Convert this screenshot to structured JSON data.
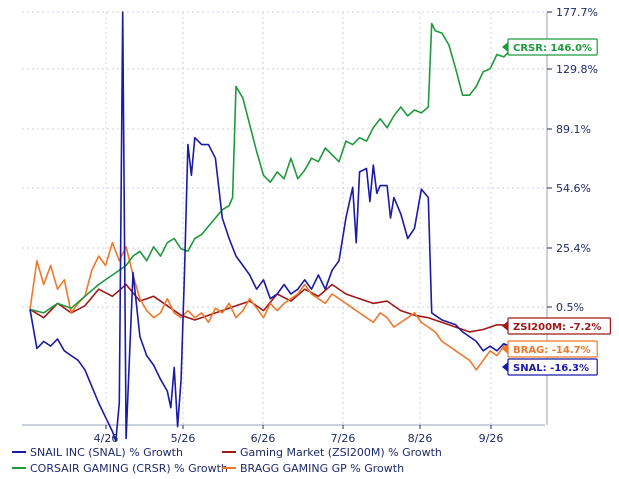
{
  "chart_data": {
    "type": "line",
    "title": "",
    "xlabel": "",
    "ylabel": "",
    "y_ticks": [
      "177.7%",
      "129.8%",
      "89.1%",
      "54.6%",
      "25.4%",
      "0.5%"
    ],
    "x_ticks": [
      "4/26",
      "5/26",
      "6/26",
      "7/26",
      "8/26",
      "9/26"
    ],
    "ylim": [
      -60,
      178
    ],
    "grid": true,
    "legend_placement": "bottom",
    "series": [
      {
        "name": "SNAIL INC (SNAL) % Growth",
        "color": "#1a1aa6",
        "end_label": "SNAL: -16.3%",
        "points": [
          [
            0,
            -0.5
          ],
          [
            2,
            -17
          ],
          [
            4,
            -14
          ],
          [
            6,
            -16
          ],
          [
            8,
            -13
          ],
          [
            10,
            -18
          ],
          [
            12,
            -20
          ],
          [
            14,
            -22
          ],
          [
            16,
            -26
          ],
          [
            18,
            -33
          ],
          [
            20,
            -40
          ],
          [
            22,
            -46
          ],
          [
            24,
            -52
          ],
          [
            25,
            -56
          ],
          [
            26,
            -40
          ],
          [
            27,
            178
          ],
          [
            28,
            -55
          ],
          [
            30,
            15
          ],
          [
            32,
            -12
          ],
          [
            34,
            -20
          ],
          [
            36,
            -24
          ],
          [
            38,
            -30
          ],
          [
            40,
            -35
          ],
          [
            41,
            -42
          ],
          [
            42,
            -25
          ],
          [
            43,
            -50
          ],
          [
            44,
            -30
          ],
          [
            45,
            15
          ],
          [
            46,
            80
          ],
          [
            47,
            62
          ],
          [
            48,
            84
          ],
          [
            50,
            80
          ],
          [
            52,
            80
          ],
          [
            54,
            72
          ],
          [
            56,
            40
          ],
          [
            58,
            30
          ],
          [
            60,
            22
          ],
          [
            62,
            18
          ],
          [
            64,
            14
          ],
          [
            66,
            8
          ],
          [
            68,
            12
          ],
          [
            70,
            4
          ],
          [
            72,
            6
          ],
          [
            74,
            10
          ],
          [
            76,
            6
          ],
          [
            78,
            8
          ],
          [
            80,
            12
          ],
          [
            82,
            8
          ],
          [
            84,
            14
          ],
          [
            86,
            8
          ],
          [
            88,
            16
          ],
          [
            90,
            20
          ],
          [
            92,
            40
          ],
          [
            94,
            55
          ],
          [
            95,
            28
          ],
          [
            96,
            64
          ],
          [
            98,
            66
          ],
          [
            99,
            48
          ],
          [
            100,
            68
          ],
          [
            101,
            52
          ],
          [
            102,
            56
          ],
          [
            104,
            56
          ],
          [
            105,
            40
          ],
          [
            106,
            50
          ],
          [
            108,
            42
          ],
          [
            110,
            30
          ],
          [
            112,
            35
          ],
          [
            114,
            54
          ],
          [
            116,
            50
          ],
          [
            117,
            -2
          ],
          [
            118,
            -3
          ],
          [
            120,
            -5
          ],
          [
            122,
            -6
          ],
          [
            124,
            -7
          ],
          [
            126,
            -10
          ],
          [
            128,
            -12
          ],
          [
            130,
            -14
          ],
          [
            132,
            -18
          ],
          [
            134,
            -16
          ],
          [
            136,
            -18
          ],
          [
            138,
            -15
          ],
          [
            140,
            -16.3
          ]
        ]
      },
      {
        "name": "Gaming Market (ZSI200M) % Growth",
        "color": "#a01818",
        "end_label": "ZSI200M: -7.2%",
        "points": [
          [
            0,
            -0.5
          ],
          [
            4,
            -4
          ],
          [
            8,
            2
          ],
          [
            12,
            -2
          ],
          [
            16,
            1
          ],
          [
            20,
            8
          ],
          [
            24,
            5
          ],
          [
            28,
            10
          ],
          [
            32,
            3
          ],
          [
            36,
            5
          ],
          [
            40,
            1
          ],
          [
            44,
            -3
          ],
          [
            48,
            -5
          ],
          [
            52,
            -3
          ],
          [
            56,
            -1
          ],
          [
            60,
            1
          ],
          [
            64,
            3
          ],
          [
            68,
            -1
          ],
          [
            72,
            6
          ],
          [
            76,
            3
          ],
          [
            80,
            8
          ],
          [
            84,
            5
          ],
          [
            88,
            10
          ],
          [
            92,
            6
          ],
          [
            96,
            4
          ],
          [
            100,
            2
          ],
          [
            104,
            3
          ],
          [
            108,
            -1
          ],
          [
            112,
            -3
          ],
          [
            116,
            -4
          ],
          [
            120,
            -6
          ],
          [
            124,
            -8
          ],
          [
            128,
            -10
          ],
          [
            132,
            -9
          ],
          [
            136,
            -7
          ],
          [
            140,
            -7.2
          ]
        ]
      },
      {
        "name": "CORSAIR GAMING (CRSR) % Growth",
        "color": "#1e9a3c",
        "end_label": "CRSR: 146.0%",
        "points": [
          [
            0,
            -0.5
          ],
          [
            4,
            -2
          ],
          [
            8,
            2
          ],
          [
            12,
            0
          ],
          [
            16,
            5
          ],
          [
            20,
            10
          ],
          [
            24,
            14
          ],
          [
            28,
            18
          ],
          [
            30,
            22
          ],
          [
            32,
            24
          ],
          [
            34,
            20
          ],
          [
            36,
            26
          ],
          [
            38,
            22
          ],
          [
            40,
            28
          ],
          [
            42,
            30
          ],
          [
            44,
            25
          ],
          [
            46,
            24
          ],
          [
            48,
            30
          ],
          [
            50,
            32
          ],
          [
            52,
            36
          ],
          [
            54,
            40
          ],
          [
            56,
            44
          ],
          [
            58,
            46
          ],
          [
            59,
            50
          ],
          [
            60,
            118
          ],
          [
            62,
            110
          ],
          [
            64,
            92
          ],
          [
            66,
            76
          ],
          [
            68,
            62
          ],
          [
            70,
            58
          ],
          [
            72,
            64
          ],
          [
            74,
            60
          ],
          [
            76,
            72
          ],
          [
            78,
            60
          ],
          [
            80,
            65
          ],
          [
            82,
            72
          ],
          [
            84,
            70
          ],
          [
            86,
            78
          ],
          [
            88,
            74
          ],
          [
            90,
            70
          ],
          [
            92,
            82
          ],
          [
            94,
            80
          ],
          [
            96,
            84
          ],
          [
            98,
            82
          ],
          [
            100,
            90
          ],
          [
            102,
            96
          ],
          [
            104,
            90
          ],
          [
            106,
            98
          ],
          [
            108,
            104
          ],
          [
            110,
            98
          ],
          [
            112,
            102
          ],
          [
            114,
            100
          ],
          [
            116,
            104
          ],
          [
            117,
            168
          ],
          [
            118,
            162
          ],
          [
            120,
            160
          ],
          [
            121,
            155
          ],
          [
            122,
            150
          ],
          [
            124,
            130
          ],
          [
            126,
            112
          ],
          [
            128,
            112
          ],
          [
            130,
            118
          ],
          [
            132,
            128
          ],
          [
            134,
            130
          ],
          [
            136,
            142
          ],
          [
            138,
            140
          ],
          [
            140,
            146
          ]
        ]
      },
      {
        "name": "BRAGG GAMING GP % Growth",
        "color": "#f0782a",
        "end_label": "BRAG: -14.7%",
        "points": [
          [
            0,
            -0.5
          ],
          [
            2,
            20
          ],
          [
            4,
            10
          ],
          [
            6,
            18
          ],
          [
            8,
            8
          ],
          [
            10,
            12
          ],
          [
            12,
            -2
          ],
          [
            14,
            2
          ],
          [
            16,
            5
          ],
          [
            18,
            16
          ],
          [
            20,
            22
          ],
          [
            22,
            18
          ],
          [
            24,
            28
          ],
          [
            26,
            20
          ],
          [
            28,
            26
          ],
          [
            30,
            14
          ],
          [
            32,
            4
          ],
          [
            34,
            -1
          ],
          [
            36,
            -4
          ],
          [
            38,
            -2
          ],
          [
            40,
            4
          ],
          [
            42,
            -2
          ],
          [
            44,
            -4
          ],
          [
            46,
            -1
          ],
          [
            48,
            -4
          ],
          [
            50,
            -2
          ],
          [
            52,
            -6
          ],
          [
            54,
            0
          ],
          [
            56,
            -2
          ],
          [
            58,
            2
          ],
          [
            60,
            -4
          ],
          [
            62,
            -1
          ],
          [
            64,
            4
          ],
          [
            66,
            0
          ],
          [
            68,
            -4
          ],
          [
            70,
            2
          ],
          [
            72,
            -1
          ],
          [
            74,
            2
          ],
          [
            76,
            4
          ],
          [
            78,
            6
          ],
          [
            80,
            10
          ],
          [
            82,
            6
          ],
          [
            84,
            4
          ],
          [
            86,
            2
          ],
          [
            88,
            6
          ],
          [
            90,
            4
          ],
          [
            92,
            2
          ],
          [
            94,
            0
          ],
          [
            96,
            -2
          ],
          [
            98,
            -4
          ],
          [
            100,
            -6
          ],
          [
            102,
            -2
          ],
          [
            104,
            -4
          ],
          [
            106,
            -8
          ],
          [
            108,
            -6
          ],
          [
            110,
            -4
          ],
          [
            112,
            -2
          ],
          [
            114,
            -6
          ],
          [
            116,
            -8
          ],
          [
            118,
            -10
          ],
          [
            120,
            -14
          ],
          [
            122,
            -16
          ],
          [
            124,
            -18
          ],
          [
            126,
            -20
          ],
          [
            128,
            -22
          ],
          [
            130,
            -26
          ],
          [
            132,
            -22
          ],
          [
            134,
            -18
          ],
          [
            136,
            -20
          ],
          [
            138,
            -16
          ],
          [
            140,
            -14.7
          ]
        ]
      }
    ]
  }
}
